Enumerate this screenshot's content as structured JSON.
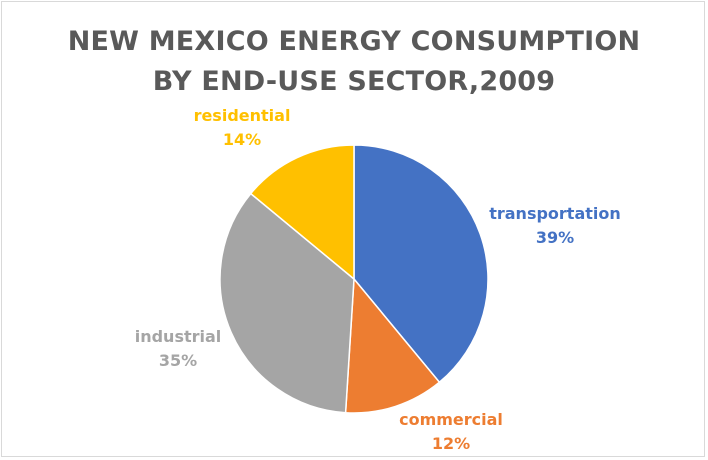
{
  "chart_data": {
    "type": "pie",
    "title_lines": [
      "NEW MEXICO ENERGY CONSUMPTION",
      "BY END-USE SECTOR,2009"
    ],
    "slices": [
      {
        "name": "transportation",
        "value": 39,
        "label": "39%",
        "color": "#4472C4"
      },
      {
        "name": "commercial",
        "value": 12,
        "label": "12%",
        "color": "#ED7D31"
      },
      {
        "name": "industrial",
        "value": 35,
        "label": "35%",
        "color": "#A5A5A5"
      },
      {
        "name": "residential",
        "value": 14,
        "label": "14%",
        "color": "#FFC000"
      }
    ],
    "start_angle": "12 o'clock",
    "direction": "clockwise",
    "legend": "none"
  }
}
